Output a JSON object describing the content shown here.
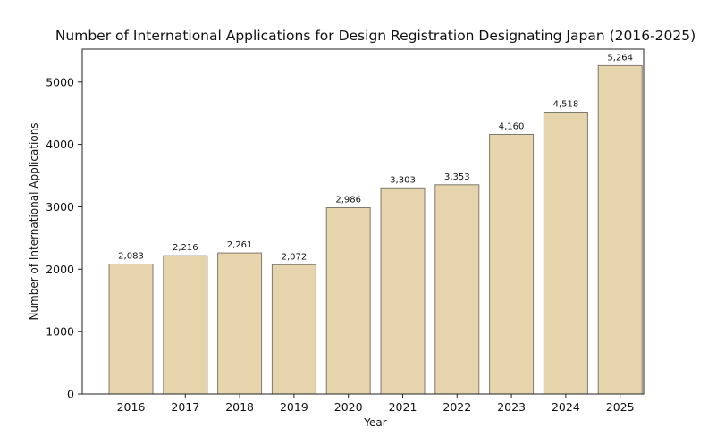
{
  "chart_data": {
    "type": "bar",
    "title": "Number of International Applications for Design Registration Designating Japan (2016-2025)",
    "xlabel": "Year",
    "ylabel": "Number of International Applications",
    "categories": [
      "2016",
      "2017",
      "2018",
      "2019",
      "2020",
      "2021",
      "2022",
      "2023",
      "2024",
      "2025"
    ],
    "values": [
      2083,
      2216,
      2261,
      2072,
      2986,
      3303,
      3353,
      4160,
      4518,
      5264
    ],
    "data_labels": [
      "2,083",
      "2,216",
      "2,261",
      "2,072",
      "2,986",
      "3,303",
      "3,353",
      "4,160",
      "4,518",
      "5,264"
    ],
    "yticks": [
      0,
      1000,
      2000,
      3000,
      4000,
      5000
    ],
    "ylim": [
      0,
      5527
    ],
    "grid": false,
    "legend": "none",
    "colors": {
      "bar_fill": "#e6d4ad",
      "bar_edge": "#7f7a70"
    }
  }
}
